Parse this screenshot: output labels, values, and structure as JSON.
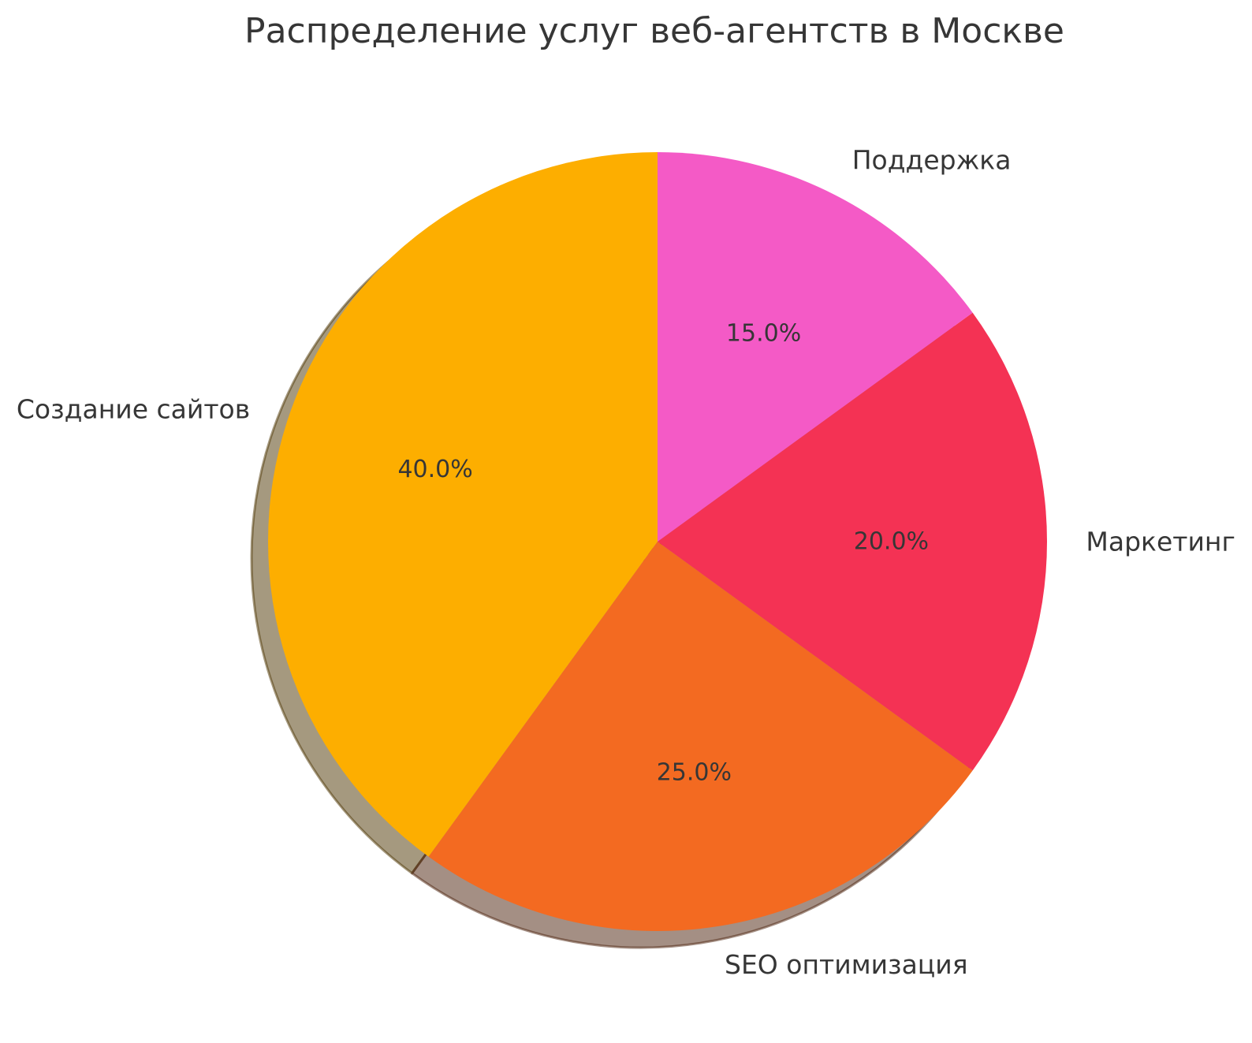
{
  "title": "Распределение услуг веб-агентств в Москве",
  "chart_data": {
    "type": "pie",
    "title": "Распределение услуг веб-агентств в Москве",
    "slices": [
      {
        "label": "Создание сайтов",
        "value": 40.0,
        "pct_label": "40.0%",
        "color": "#FDAE00"
      },
      {
        "label": "SEO оптимизация",
        "value": 25.0,
        "pct_label": "25.0%",
        "color": "#F36A21"
      },
      {
        "label": "Маркетинг",
        "value": 20.0,
        "pct_label": "20.0%",
        "color": "#F43254"
      },
      {
        "label": "Поддержка",
        "value": 15.0,
        "pct_label": "15.0%",
        "color": "#F45AC6"
      }
    ],
    "start_angle": 90,
    "direction": "counterclockwise",
    "shadow": true,
    "label_distance": 1.1,
    "pct_distance": 0.6,
    "text_color": "#363636",
    "background": "#ffffff",
    "legend": "none"
  }
}
